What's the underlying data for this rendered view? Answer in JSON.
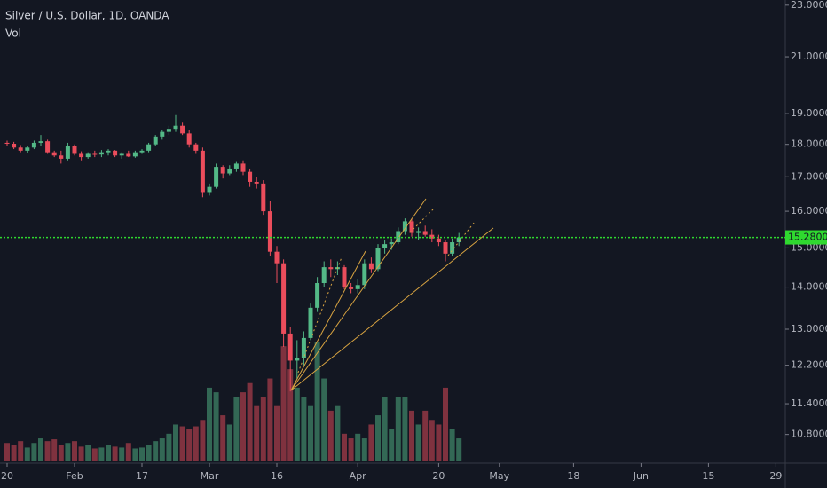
{
  "chart_data": {
    "type": "candlestick",
    "title": "Silver / U.S. Dollar, 1D, OANDA",
    "volume_label": "Vol",
    "log_scale": true,
    "up_color": "#53b987",
    "down_color": "#eb4d5c",
    "price_line_color": "#2fd92f",
    "ylim": [
      10.3,
      23.21
    ],
    "yticks": [
      {
        "value": 23,
        "label": "23.00000"
      },
      {
        "value": 21,
        "label": "21.00000"
      },
      {
        "value": 19,
        "label": "19.00000"
      },
      {
        "value": 18,
        "label": "18.00000"
      },
      {
        "value": 17,
        "label": "17.00000"
      },
      {
        "value": 16,
        "label": "16.00000"
      },
      {
        "value": 15,
        "label": "15.00000"
      },
      {
        "value": 14,
        "label": "14.00000"
      },
      {
        "value": 13,
        "label": "13.00000"
      },
      {
        "value": 12.2,
        "label": "12.20000"
      },
      {
        "value": 11.4,
        "label": "11.40000"
      },
      {
        "value": 10.8,
        "label": "10.80000"
      }
    ],
    "xticks": [
      {
        "value": "Jan 20",
        "label": "20"
      },
      {
        "value": "Feb 3",
        "label": "Feb"
      },
      {
        "value": "Feb 17",
        "label": "17"
      },
      {
        "value": "Mar 2",
        "label": "Mar"
      },
      {
        "value": "Mar 16",
        "label": "16"
      },
      {
        "value": "Apr 1",
        "label": "Apr"
      },
      {
        "value": "Apr 20",
        "label": "20"
      },
      {
        "value": "May 1",
        "label": "May"
      },
      {
        "value": "May 18",
        "label": "18"
      },
      {
        "value": "Jun 1",
        "label": "Jun"
      },
      {
        "value": "Jun 15",
        "label": "15"
      },
      {
        "value": "Jun 29",
        "label": "29"
      }
    ],
    "last_price": 15.28003,
    "x": [
      "Jan 20",
      "Jan 21",
      "Jan 22",
      "Jan 23",
      "Jan 24",
      "Jan 27",
      "Jan 28",
      "Jan 29",
      "Jan 30",
      "Jan 31",
      "Feb 3",
      "Feb 4",
      "Feb 5",
      "Feb 6",
      "Feb 7",
      "Feb 10",
      "Feb 11",
      "Feb 12",
      "Feb 13",
      "Feb 14",
      "Feb 17",
      "Feb 18",
      "Feb 19",
      "Feb 20",
      "Feb 21",
      "Feb 24",
      "Feb 25",
      "Feb 26",
      "Feb 27",
      "Feb 28",
      "Mar 2",
      "Mar 3",
      "Mar 4",
      "Mar 5",
      "Mar 6",
      "Mar 9",
      "Mar 10",
      "Mar 11",
      "Mar 12",
      "Mar 13",
      "Mar 16",
      "Mar 17",
      "Mar 18",
      "Mar 19",
      "Mar 20",
      "Mar 23",
      "Mar 24",
      "Mar 25",
      "Mar 26",
      "Mar 27",
      "Mar 30",
      "Mar 31",
      "Apr 1",
      "Apr 2",
      "Apr 3",
      "Apr 6",
      "Apr 7",
      "Apr 8",
      "Apr 9",
      "Apr 13",
      "Apr 14",
      "Apr 15",
      "Apr 16",
      "Apr 17",
      "Apr 20",
      "Apr 21",
      "Apr 22",
      "Apr 23"
    ],
    "open": [
      18.05,
      18.02,
      17.9,
      17.8,
      17.9,
      18.05,
      18.1,
      17.75,
      17.65,
      17.55,
      17.95,
      17.7,
      17.6,
      17.7,
      17.68,
      17.75,
      17.8,
      17.65,
      17.7,
      17.62,
      17.75,
      17.8,
      18.0,
      18.25,
      18.4,
      18.5,
      18.6,
      18.35,
      18.0,
      17.8,
      16.55,
      16.7,
      17.3,
      17.1,
      17.25,
      17.4,
      17.15,
      16.85,
      16.8,
      16.0,
      14.9,
      14.6,
      12.9,
      12.3,
      12.35,
      12.8,
      13.5,
      14.1,
      14.5,
      14.45,
      14.5,
      14.0,
      13.95,
      14.05,
      14.6,
      14.45,
      15.0,
      15.1,
      15.15,
      15.45,
      15.72,
      15.4,
      15.45,
      15.35,
      15.25,
      15.15,
      14.85,
      15.15
    ],
    "high": [
      18.12,
      18.08,
      17.98,
      17.95,
      18.12,
      18.3,
      18.15,
      17.8,
      17.8,
      18.05,
      18.0,
      17.78,
      17.75,
      17.8,
      17.82,
      17.85,
      17.82,
      17.75,
      17.8,
      17.8,
      17.85,
      18.05,
      18.3,
      18.45,
      18.6,
      18.95,
      18.7,
      18.45,
      18.05,
      17.9,
      16.8,
      17.4,
      17.35,
      17.35,
      17.45,
      17.5,
      17.25,
      17.0,
      16.9,
      16.3,
      15.05,
      14.7,
      13.05,
      12.75,
      12.95,
      13.6,
      14.25,
      14.65,
      14.7,
      14.65,
      14.55,
      14.1,
      14.2,
      14.7,
      14.75,
      15.1,
      15.2,
      15.25,
      15.55,
      15.8,
      15.8,
      15.55,
      15.6,
      15.5,
      15.35,
      15.2,
      15.25,
      15.4
    ],
    "low": [
      17.95,
      17.85,
      17.75,
      17.72,
      17.85,
      17.95,
      17.7,
      17.6,
      17.4,
      17.5,
      17.65,
      17.5,
      17.55,
      17.6,
      17.6,
      17.65,
      17.6,
      17.55,
      17.6,
      17.58,
      17.7,
      17.75,
      17.95,
      18.15,
      18.3,
      18.4,
      18.3,
      17.9,
      17.7,
      16.4,
      16.45,
      16.65,
      16.95,
      17.05,
      17.15,
      17.05,
      16.7,
      16.65,
      15.9,
      14.8,
      14.1,
      12.6,
      11.65,
      11.9,
      12.2,
      12.75,
      13.4,
      14.0,
      14.25,
      14.3,
      13.95,
      13.85,
      13.85,
      13.95,
      14.35,
      14.4,
      14.85,
      14.95,
      15.1,
      15.35,
      15.3,
      15.2,
      15.3,
      15.15,
      15.05,
      14.65,
      14.8,
      15.05
    ],
    "close": [
      18.02,
      17.9,
      17.8,
      17.9,
      18.05,
      18.1,
      17.75,
      17.65,
      17.55,
      17.95,
      17.7,
      17.6,
      17.7,
      17.68,
      17.75,
      17.8,
      17.65,
      17.7,
      17.62,
      17.75,
      17.8,
      18.0,
      18.25,
      18.4,
      18.5,
      18.6,
      18.35,
      18.0,
      17.8,
      16.55,
      16.7,
      17.3,
      17.1,
      17.25,
      17.4,
      17.15,
      16.85,
      16.8,
      16.0,
      14.9,
      14.6,
      12.9,
      12.3,
      12.35,
      12.8,
      13.5,
      14.1,
      14.5,
      14.45,
      14.5,
      14.0,
      13.95,
      14.05,
      14.6,
      14.45,
      15.0,
      15.1,
      15.15,
      15.45,
      15.72,
      15.4,
      15.45,
      15.35,
      15.25,
      15.15,
      14.85,
      15.15,
      15.28003
    ],
    "volume": [
      20,
      18,
      22,
      15,
      20,
      25,
      22,
      24,
      18,
      20,
      22,
      16,
      18,
      14,
      15,
      18,
      16,
      15,
      20,
      14,
      15,
      18,
      22,
      25,
      30,
      40,
      38,
      35,
      38,
      45,
      80,
      75,
      50,
      40,
      70,
      75,
      85,
      60,
      70,
      90,
      60,
      125,
      100,
      80,
      70,
      60,
      130,
      90,
      55,
      60,
      30,
      25,
      30,
      25,
      40,
      50,
      70,
      35,
      70,
      70,
      55,
      40,
      55,
      45,
      40,
      80,
      35,
      25
    ]
  }
}
